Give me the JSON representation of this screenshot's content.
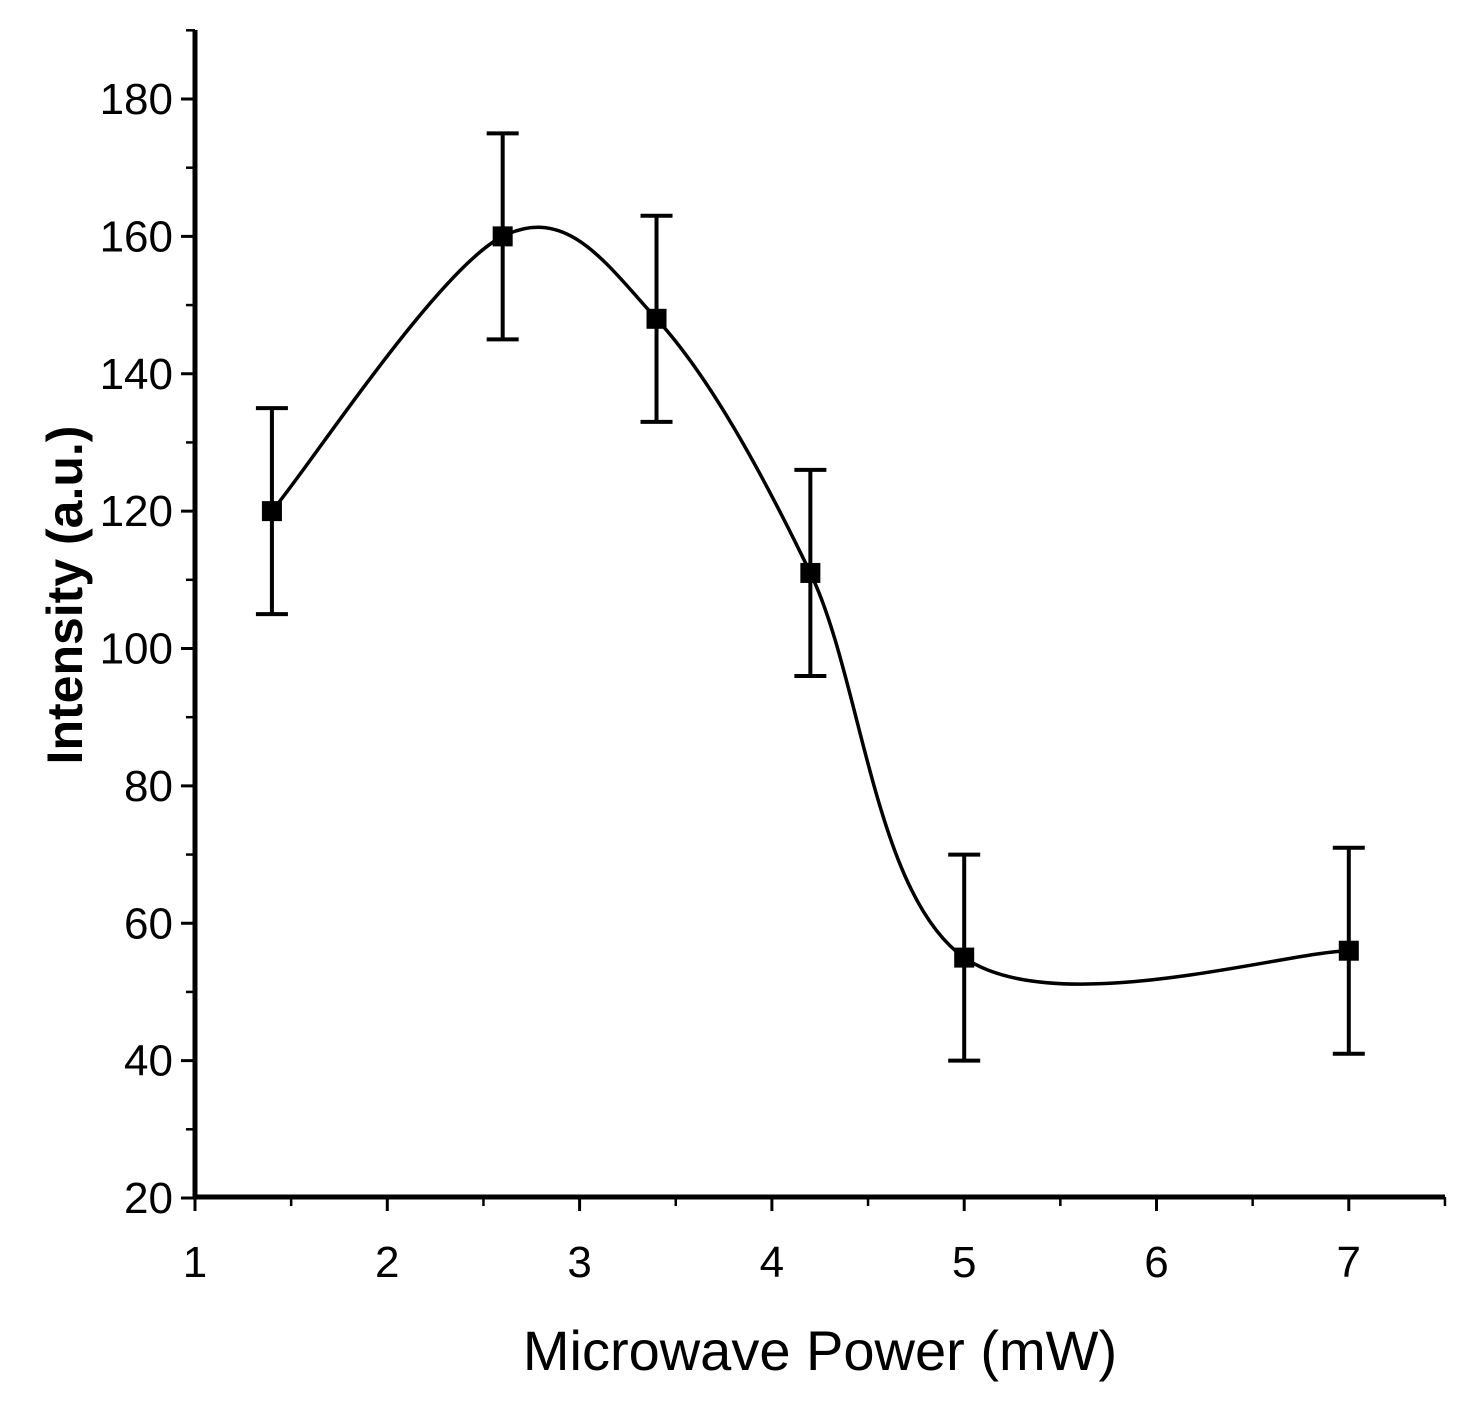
{
  "chart_data": {
    "type": "scatter",
    "title": "",
    "xlabel": "Microwave Power (mW)",
    "ylabel": "Intensity (a.u.)",
    "x_tick_labels": [
      "1",
      "2",
      "3",
      "4",
      "5",
      "6",
      "7"
    ],
    "y_tick_labels": [
      "20",
      "40",
      "60",
      "80",
      "100",
      "120",
      "140",
      "160",
      "180"
    ],
    "ylim": [
      20,
      190
    ],
    "grid": false,
    "legend": "none",
    "series": [
      {
        "name": "Intensity",
        "marker": "square",
        "connector": "smooth-spline",
        "color": "#000000",
        "points": [
          {
            "x": 1.4,
            "y": 120,
            "err_low": 105,
            "err_high": 135
          },
          {
            "x": 2.6,
            "y": 160,
            "err_low": 145,
            "err_high": 175
          },
          {
            "x": 3.4,
            "y": 148,
            "err_low": 133,
            "err_high": 163
          },
          {
            "x": 4.2,
            "y": 111,
            "err_low": 96,
            "err_high": 126
          },
          {
            "x": 5,
            "y": 55,
            "err_low": 40,
            "err_high": 70
          },
          {
            "x": 7,
            "y": 56,
            "err_low": 41,
            "err_high": 71
          }
        ]
      }
    ]
  }
}
